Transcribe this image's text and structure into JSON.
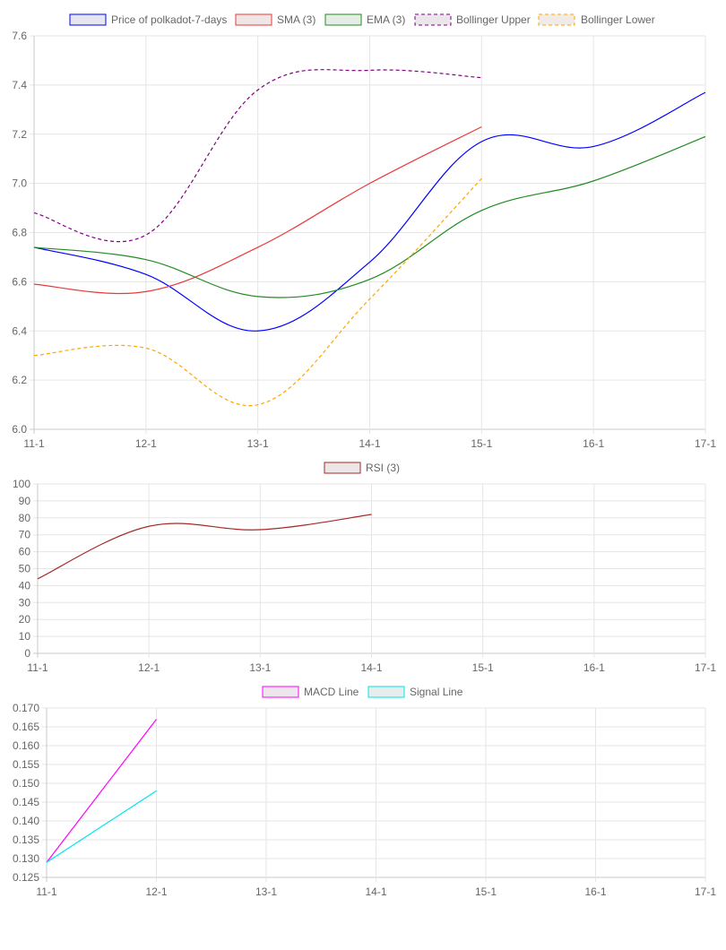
{
  "chart_data": [
    {
      "type": "line",
      "x": [
        "11-1",
        "12-1",
        "13-1",
        "14-1",
        "15-1",
        "16-1",
        "17-1"
      ],
      "series": [
        {
          "name": "Price of polkadot-7-days",
          "color": "#0000ff",
          "fill": "#e6e6f0",
          "dashed": false,
          "values": [
            6.74,
            6.63,
            6.4,
            6.68,
            7.17,
            7.15,
            7.37
          ]
        },
        {
          "name": "SMA (3)",
          "color": "#e83a3a",
          "fill": "#f0e6e6",
          "dashed": false,
          "values": [
            6.59,
            6.56,
            6.74,
            7.0,
            7.23,
            null,
            null
          ]
        },
        {
          "name": "EMA (3)",
          "color": "#228b22",
          "fill": "#e6ede6",
          "dashed": false,
          "values": [
            6.74,
            6.69,
            6.54,
            6.61,
            6.89,
            7.01,
            7.19
          ]
        },
        {
          "name": "Bollinger Upper",
          "color": "#800080",
          "fill": "#ebe6eb",
          "dashed": true,
          "values": [
            6.88,
            6.79,
            7.38,
            7.46,
            7.43,
            null,
            null
          ]
        },
        {
          "name": "Bollinger Lower",
          "color": "#ffa500",
          "fill": "#f0ebe6",
          "dashed": true,
          "values": [
            6.3,
            6.33,
            6.1,
            6.53,
            7.02,
            null,
            null
          ]
        }
      ],
      "ylim": [
        6.0,
        7.6
      ],
      "yticks": [
        "6.0",
        "6.2",
        "6.4",
        "6.6",
        "6.8",
        "7.0",
        "7.2",
        "7.4",
        "7.6"
      ],
      "grid": true,
      "legend": "top"
    },
    {
      "type": "line",
      "x": [
        "11-1",
        "12-1",
        "13-1",
        "14-1",
        "15-1",
        "16-1",
        "17-1"
      ],
      "series": [
        {
          "name": "RSI (3)",
          "color": "#a52a2a",
          "fill": "#ece6e6",
          "dashed": false,
          "values": [
            44,
            75,
            73,
            82,
            null,
            null,
            null
          ]
        }
      ],
      "ylim": [
        0,
        100
      ],
      "yticks": [
        "0",
        "10",
        "20",
        "30",
        "40",
        "50",
        "60",
        "70",
        "80",
        "90",
        "100"
      ],
      "grid": true,
      "legend": "top"
    },
    {
      "type": "line",
      "x": [
        "11-1",
        "12-1",
        "13-1",
        "14-1",
        "15-1",
        "16-1",
        "17-1"
      ],
      "series": [
        {
          "name": "MACD Line",
          "color": "#ff00ff",
          "fill": "#ede6ed",
          "dashed": false,
          "values": [
            0.129,
            0.167,
            null,
            null,
            null,
            null,
            null
          ]
        },
        {
          "name": "Signal Line",
          "color": "#00e5ee",
          "fill": "#e6eded",
          "dashed": false,
          "values": [
            0.129,
            0.148,
            null,
            null,
            null,
            null,
            null
          ]
        }
      ],
      "ylim": [
        0.125,
        0.17
      ],
      "yticks": [
        "0.125",
        "0.130",
        "0.135",
        "0.140",
        "0.145",
        "0.150",
        "0.155",
        "0.160",
        "0.165",
        "0.170"
      ],
      "grid": true,
      "legend": "top"
    }
  ]
}
